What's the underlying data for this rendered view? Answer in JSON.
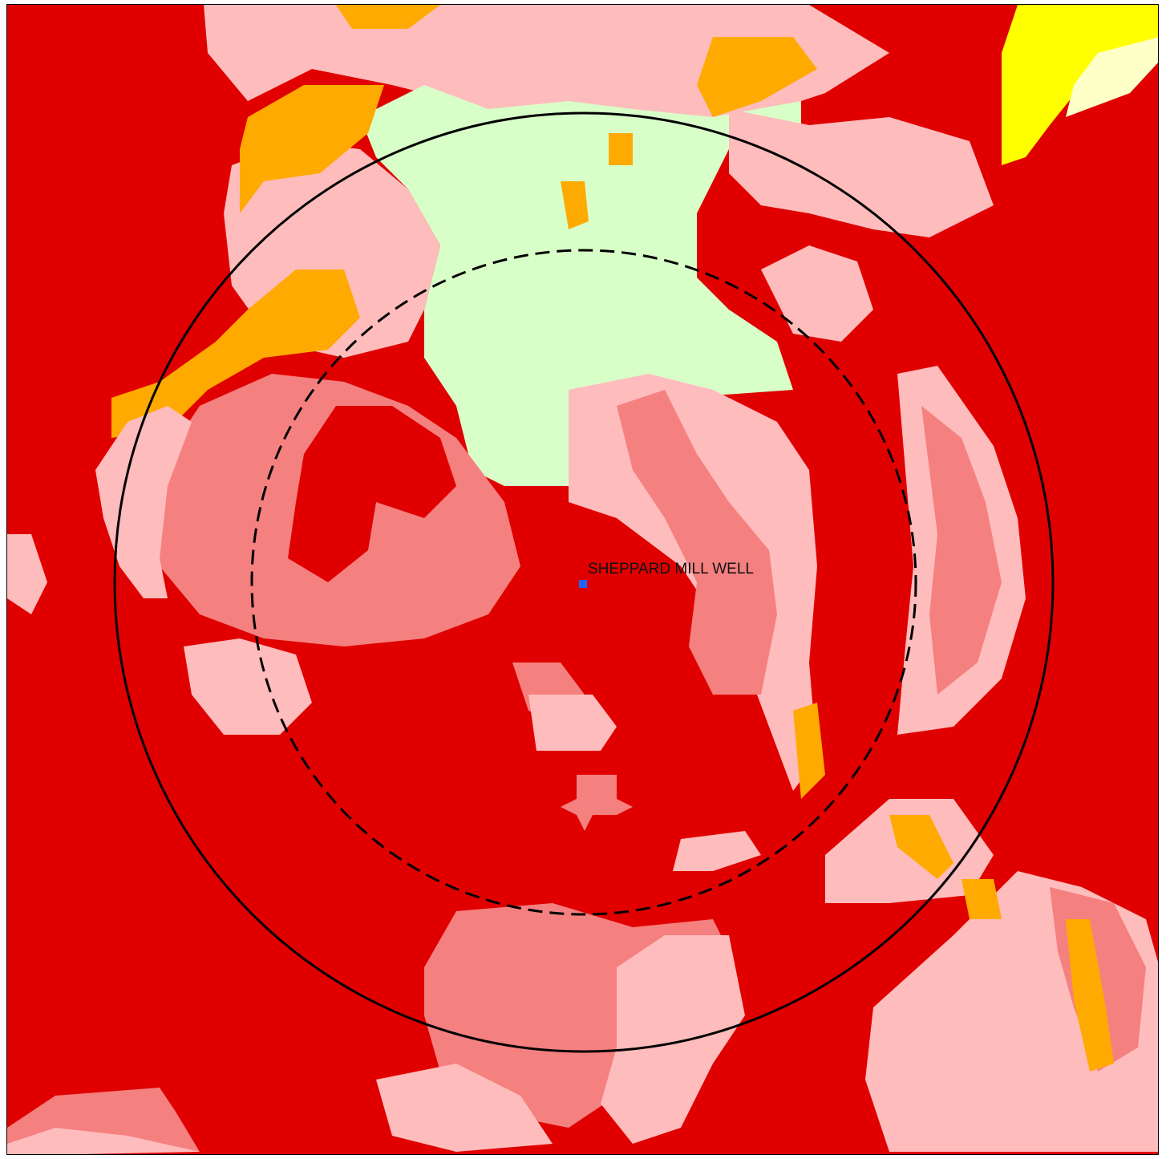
{
  "map": {
    "well_label": "SHEPPARD MILL WELL",
    "colors": {
      "background": "#e00000",
      "pink_light": "#ffbcbc",
      "pink_medium": "#f58080",
      "green_light": "#d8ffc8",
      "orange": "#ffaa00",
      "yellow": "#ffff00",
      "cream": "#ffffc8",
      "well_marker": "#1e64ff",
      "ring_outer": "#000000",
      "ring_inner": "#000000"
    },
    "rings": [
      {
        "name": "outer-radius",
        "style": "solid"
      },
      {
        "name": "inner-radius",
        "style": "dashed"
      }
    ]
  }
}
